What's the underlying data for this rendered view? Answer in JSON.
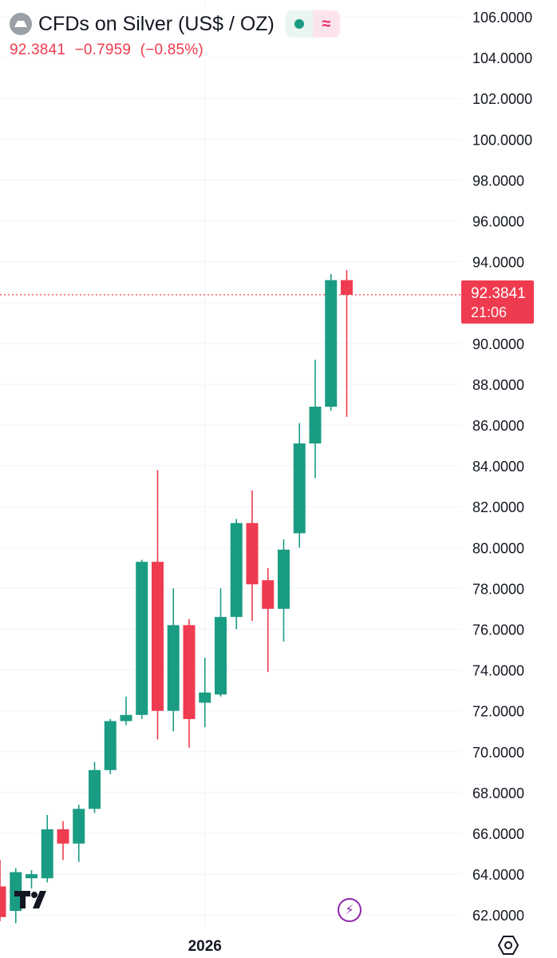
{
  "header": {
    "symbol_title": "CFDs on Silver (US$ / OZ)",
    "status_color": "#1a9c83",
    "delay_symbol": "≈"
  },
  "quote": {
    "last": "92.3841",
    "change": "−0.7959",
    "change_pct": "(−0.85%)"
  },
  "price_tag": {
    "price": "92.3841",
    "countdown": "21:06"
  },
  "colors": {
    "up": "#1a9c83",
    "down": "#ef3b4f",
    "grid": "#f0f3fa",
    "text": "#131722"
  },
  "icons": {
    "logo": "tradingview-logo-icon",
    "bolt": "lightning-bolt-icon",
    "settings": "gear-icon"
  },
  "chart_data": {
    "type": "candlestick",
    "y_axis": {
      "min": 61.5,
      "max": 106.3,
      "ticks": [
        "106.0000",
        "104.0000",
        "102.0000",
        "100.0000",
        "98.0000",
        "96.0000",
        "94.0000",
        "92.0000",
        "90.0000",
        "88.0000",
        "86.0000",
        "84.0000",
        "82.0000",
        "80.0000",
        "78.0000",
        "76.0000",
        "74.0000",
        "72.0000",
        "70.0000",
        "68.0000",
        "66.0000",
        "64.0000",
        "62.0000"
      ]
    },
    "x_axis": {
      "labels": [
        {
          "text": "2026",
          "candle_index": 13
        }
      ]
    },
    "current_price_line": 92.3841,
    "candles": [
      {
        "o": 63.4,
        "h": 64.7,
        "l": 61.7,
        "c": 61.9
      },
      {
        "o": 62.2,
        "h": 64.3,
        "l": 61.6,
        "c": 64.1
      },
      {
        "o": 63.8,
        "h": 64.2,
        "l": 63.3,
        "c": 64.0
      },
      {
        "o": 63.8,
        "h": 66.9,
        "l": 63.6,
        "c": 66.2
      },
      {
        "o": 66.2,
        "h": 66.6,
        "l": 64.7,
        "c": 65.5
      },
      {
        "o": 65.5,
        "h": 67.4,
        "l": 64.6,
        "c": 67.2
      },
      {
        "o": 67.2,
        "h": 69.5,
        "l": 67.0,
        "c": 69.1
      },
      {
        "o": 69.1,
        "h": 71.6,
        "l": 68.9,
        "c": 71.5
      },
      {
        "o": 71.5,
        "h": 72.7,
        "l": 71.3,
        "c": 71.8
      },
      {
        "o": 71.8,
        "h": 79.4,
        "l": 71.6,
        "c": 79.3
      },
      {
        "o": 79.3,
        "h": 83.8,
        "l": 70.6,
        "c": 72.0
      },
      {
        "o": 72.0,
        "h": 78.0,
        "l": 71.0,
        "c": 76.2
      },
      {
        "o": 76.2,
        "h": 76.5,
        "l": 70.2,
        "c": 71.6
      },
      {
        "o": 72.4,
        "h": 74.6,
        "l": 71.2,
        "c": 72.9
      },
      {
        "o": 72.8,
        "h": 78.0,
        "l": 72.7,
        "c": 76.6
      },
      {
        "o": 76.6,
        "h": 81.4,
        "l": 76.0,
        "c": 81.2
      },
      {
        "o": 81.2,
        "h": 82.8,
        "l": 76.4,
        "c": 78.2
      },
      {
        "o": 78.4,
        "h": 79.0,
        "l": 73.9,
        "c": 77.0
      },
      {
        "o": 77.0,
        "h": 80.4,
        "l": 75.4,
        "c": 79.9
      },
      {
        "o": 80.7,
        "h": 86.1,
        "l": 80.0,
        "c": 85.1
      },
      {
        "o": 85.1,
        "h": 89.2,
        "l": 83.4,
        "c": 86.9
      },
      {
        "o": 86.9,
        "h": 93.4,
        "l": 86.7,
        "c": 93.1
      },
      {
        "o": 93.1,
        "h": 93.6,
        "l": 86.4,
        "c": 92.3841
      }
    ]
  }
}
